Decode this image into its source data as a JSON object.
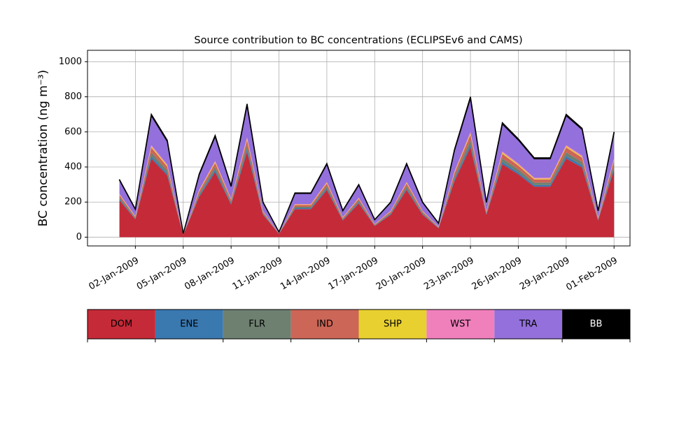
{
  "chart_data": {
    "type": "stacked_area",
    "title": "Source contribution to BC concentrations (ECLIPSEv6 and CAMS)",
    "ylabel": "BC concentration (ng m⁻³)",
    "x": [
      "2009-01-01",
      "2009-01-02",
      "2009-01-03",
      "2009-01-04",
      "2009-01-05",
      "2009-01-06",
      "2009-01-07",
      "2009-01-08",
      "2009-01-09",
      "2009-01-10",
      "2009-01-11",
      "2009-01-12",
      "2009-01-13",
      "2009-01-14",
      "2009-01-15",
      "2009-01-16",
      "2009-01-17",
      "2009-01-18",
      "2009-01-19",
      "2009-01-20",
      "2009-01-21",
      "2009-01-22",
      "2009-01-23",
      "2009-01-24",
      "2009-01-25",
      "2009-01-26",
      "2009-01-27",
      "2009-01-28",
      "2009-01-29",
      "2009-01-30",
      "2009-01-31",
      "2009-02-01"
    ],
    "series": [
      {
        "name": "DOM",
        "color": "#c52a38",
        "values": [
          211,
          102,
          448,
          352,
          13,
          230,
          371,
          186,
          486,
          128,
          19,
          160,
          160,
          269,
          96,
          192,
          64,
          128,
          269,
          128,
          51,
          320,
          512,
          128,
          416,
          358,
          288,
          288,
          448,
          397,
          96,
          384
        ]
      },
      {
        "name": "ENE",
        "color": "#3a78b0",
        "values": [
          7,
          3,
          14,
          11,
          0,
          7,
          12,
          6,
          15,
          4,
          1,
          5,
          5,
          8,
          3,
          6,
          2,
          4,
          8,
          4,
          2,
          10,
          16,
          4,
          13,
          11,
          9,
          9,
          14,
          12,
          3,
          12
        ]
      },
      {
        "name": "FLR",
        "color": "#6e8070",
        "values": [
          10,
          5,
          21,
          17,
          1,
          11,
          17,
          9,
          23,
          6,
          1,
          8,
          8,
          13,
          5,
          9,
          3,
          6,
          13,
          6,
          2,
          15,
          24,
          6,
          20,
          17,
          14,
          14,
          21,
          19,
          5,
          18
        ]
      },
      {
        "name": "IND",
        "color": "#cc6657",
        "values": [
          13,
          6,
          28,
          22,
          1,
          14,
          23,
          12,
          30,
          8,
          1,
          10,
          10,
          17,
          6,
          12,
          4,
          8,
          17,
          8,
          3,
          20,
          32,
          8,
          26,
          22,
          18,
          18,
          28,
          25,
          6,
          24
        ]
      },
      {
        "name": "SHP",
        "color": "#e8d030",
        "values": [
          3,
          2,
          7,
          6,
          0,
          4,
          6,
          3,
          8,
          2,
          0,
          3,
          3,
          4,
          2,
          3,
          1,
          2,
          4,
          2,
          1,
          5,
          8,
          2,
          7,
          6,
          5,
          5,
          7,
          6,
          2,
          6
        ]
      },
      {
        "name": "WST",
        "color": "#f080bc",
        "values": [
          3,
          2,
          7,
          6,
          0,
          4,
          6,
          3,
          8,
          2,
          0,
          3,
          3,
          4,
          2,
          3,
          1,
          2,
          4,
          2,
          1,
          5,
          8,
          2,
          7,
          6,
          5,
          5,
          7,
          6,
          2,
          6
        ]
      },
      {
        "name": "TRA",
        "color": "#9370db",
        "values": [
          79,
          38,
          168,
          132,
          5,
          86,
          139,
          70,
          182,
          48,
          7,
          60,
          60,
          101,
          36,
          72,
          24,
          48,
          101,
          48,
          19,
          120,
          192,
          48,
          156,
          134,
          108,
          108,
          168,
          149,
          36,
          144
        ]
      },
      {
        "name": "BB",
        "color": "#000000",
        "values": [
          3,
          2,
          7,
          6,
          0,
          4,
          6,
          3,
          8,
          2,
          0,
          3,
          3,
          4,
          2,
          3,
          1,
          2,
          4,
          2,
          1,
          5,
          8,
          2,
          7,
          6,
          5,
          5,
          7,
          6,
          2,
          6
        ]
      }
    ],
    "xlim": [
      "2008-12-30",
      "2009-02-02"
    ],
    "xticks": [
      {
        "value": "2009-01-02",
        "label": "02-Jan-2009"
      },
      {
        "value": "2009-01-05",
        "label": "05-Jan-2009"
      },
      {
        "value": "2009-01-08",
        "label": "08-Jan-2009"
      },
      {
        "value": "2009-01-11",
        "label": "11-Jan-2009"
      },
      {
        "value": "2009-01-14",
        "label": "14-Jan-2009"
      },
      {
        "value": "2009-01-17",
        "label": "17-Jan-2009"
      },
      {
        "value": "2009-01-20",
        "label": "20-Jan-2009"
      },
      {
        "value": "2009-01-23",
        "label": "23-Jan-2009"
      },
      {
        "value": "2009-01-26",
        "label": "26-Jan-2009"
      },
      {
        "value": "2009-01-29",
        "label": "29-Jan-2009"
      },
      {
        "value": "2009-02-01",
        "label": "01-Feb-2009"
      }
    ],
    "ylim": [
      -50,
      1065
    ],
    "yticks": [
      0,
      200,
      400,
      600,
      800,
      1000
    ],
    "grid": true
  }
}
